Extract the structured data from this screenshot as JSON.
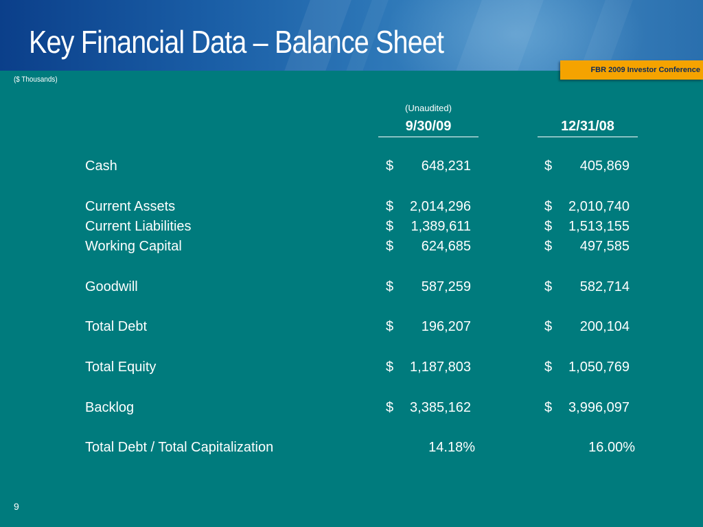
{
  "header": {
    "title": "Key Financial Data – Balance Sheet",
    "conference_badge": "FBR 2009 Investor Conference",
    "units": "($ Thousands)"
  },
  "columns": {
    "note": "(Unaudited)",
    "col1": "9/30/09",
    "col2": "12/31/08"
  },
  "rows": [
    {
      "label": "Cash",
      "col1_symbol": "$",
      "col1_value": "648,231",
      "col2_symbol": "$",
      "col2_value": "405,869"
    },
    {
      "label": "Current Assets",
      "col1_symbol": "$",
      "col1_value": "2,014,296",
      "col2_symbol": "$",
      "col2_value": "2,010,740"
    },
    {
      "label": "Current Liabilities",
      "col1_symbol": "$",
      "col1_value": "1,389,611",
      "col2_symbol": "$",
      "col2_value": "1,513,155"
    },
    {
      "label": "Working Capital",
      "col1_symbol": "$",
      "col1_value": "624,685",
      "col2_symbol": "$",
      "col2_value": "497,585"
    },
    {
      "label": "Goodwill",
      "col1_symbol": "$",
      "col1_value": "587,259",
      "col2_symbol": "$",
      "col2_value": "582,714"
    },
    {
      "label": "Total Debt",
      "col1_symbol": "$",
      "col1_value": "196,207",
      "col2_symbol": "$",
      "col2_value": "200,104"
    },
    {
      "label": "Total Equity",
      "col1_symbol": "$",
      "col1_value": "1,187,803",
      "col2_symbol": "$",
      "col2_value": "1,050,769"
    },
    {
      "label": "Backlog",
      "col1_symbol": "$",
      "col1_value": "3,385,162",
      "col2_symbol": "$",
      "col2_value": "3,996,097"
    },
    {
      "label": "Total Debt / Total Capitalization",
      "col1_symbol": "",
      "col1_value": "14.18%",
      "col2_symbol": "",
      "col2_value": "16.00%"
    }
  ],
  "footer": {
    "page_number": "9"
  },
  "colors": {
    "background": "#007b7d",
    "badge": "#f5a300",
    "header_band": "#1a5ea6"
  }
}
